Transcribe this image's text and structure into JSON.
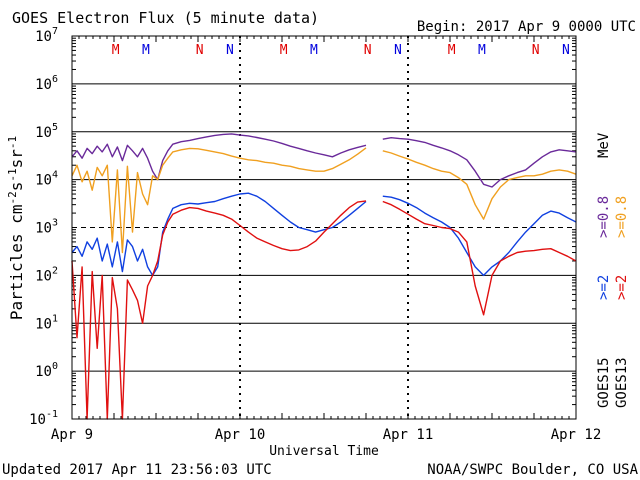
{
  "header": {
    "title": "GOES Electron Flux (5 minute data)",
    "begin": "Begin: 2017 Apr 9 0000 UTC"
  },
  "footer": {
    "updated": "Updated 2017 Apr 11 23:56:03 UTC",
    "credit": "NOAA/SWPC Boulder, CO USA"
  },
  "chart_data": {
    "type": "line",
    "title": "GOES Electron Flux (5 minute data)",
    "xlabel": "Universal Time",
    "ylabel": "Particles cm-2s-1sr-1",
    "yscale": "log",
    "ylim": [
      0.1,
      10000000
    ],
    "y_ticks": [
      {
        "base": "10",
        "exp": "-1",
        "value": 0.1
      },
      {
        "base": "10",
        "exp": "0",
        "value": 1
      },
      {
        "base": "10",
        "exp": "1",
        "value": 10
      },
      {
        "base": "10",
        "exp": "2",
        "value": 100
      },
      {
        "base": "10",
        "exp": "3",
        "value": 1000
      },
      {
        "base": "10",
        "exp": "4",
        "value": 10000
      },
      {
        "base": "10",
        "exp": "5",
        "value": 100000
      },
      {
        "base": "10",
        "exp": "6",
        "value": 1000000
      },
      {
        "base": "10",
        "exp": "7",
        "value": 10000000
      }
    ],
    "xlim_days": [
      0,
      3
    ],
    "x_ticks": [
      {
        "label": "Apr 9",
        "day": 0
      },
      {
        "label": "Apr 10",
        "day": 1
      },
      {
        "label": "Apr 11",
        "day": 2
      },
      {
        "label": "Apr 12",
        "day": 3
      }
    ],
    "threshold": 1000,
    "grid": true,
    "markers": [
      {
        "label": "M",
        "day": 0.26,
        "color": "#e00000"
      },
      {
        "label": "M",
        "day": 0.44,
        "color": "#0000dd"
      },
      {
        "label": "N",
        "day": 0.76,
        "color": "#e00000"
      },
      {
        "label": "N",
        "day": 0.94,
        "color": "#0000dd"
      },
      {
        "label": "M",
        "day": 1.26,
        "color": "#e00000"
      },
      {
        "label": "M",
        "day": 1.44,
        "color": "#0000dd"
      },
      {
        "label": "N",
        "day": 1.76,
        "color": "#e00000"
      },
      {
        "label": "N",
        "day": 1.94,
        "color": "#0000dd"
      },
      {
        "label": "M",
        "day": 2.26,
        "color": "#e00000"
      },
      {
        "label": "M",
        "day": 2.44,
        "color": "#0000dd"
      },
      {
        "label": "N",
        "day": 2.76,
        "color": "#e00000"
      },
      {
        "label": "N",
        "day": 2.94,
        "color": "#0000dd"
      }
    ],
    "legend": {
      "groups": [
        {
          "satellite": "GOES15",
          "items": [
            {
              "label": ">=2",
              "color": "#1040e0"
            },
            {
              "label": ">=0.8",
              "color": "#6a2a9a"
            }
          ]
        },
        {
          "satellite": "GOES13",
          "items": [
            {
              "label": ">=2",
              "color": "#e01010"
            },
            {
              "label": ">=0.8",
              "color": "#f0a020"
            }
          ]
        }
      ],
      "unit": "MeV"
    },
    "series": [
      {
        "color": "#6a2a9a",
        "x": [
          0.0,
          0.03,
          0.06,
          0.09,
          0.12,
          0.15,
          0.18,
          0.21,
          0.24,
          0.27,
          0.3,
          0.33,
          0.36,
          0.39,
          0.42,
          0.45,
          0.48,
          0.51,
          0.54,
          0.57,
          0.6,
          0.65,
          0.7,
          0.75,
          0.8,
          0.85,
          0.9,
          0.95,
          1.0,
          1.05,
          1.1,
          1.15,
          1.2,
          1.25,
          1.3,
          1.35,
          1.4,
          1.45,
          1.5,
          1.55,
          1.6,
          1.65,
          1.7,
          1.75,
          1.8,
          1.85,
          1.9,
          1.95,
          2.0,
          2.05,
          2.1,
          2.15,
          2.2,
          2.25,
          2.3,
          2.35,
          2.4,
          2.45,
          2.5,
          2.55,
          2.6,
          2.65,
          2.7,
          2.75,
          2.8,
          2.85,
          2.9,
          2.95,
          3.0
        ],
        "y": [
          30000,
          40000,
          28000,
          45000,
          35000,
          50000,
          38000,
          55000,
          30000,
          48000,
          25000,
          52000,
          40000,
          30000,
          45000,
          28000,
          15000,
          10000,
          25000,
          40000,
          55000,
          62000,
          66000,
          72000,
          78000,
          84000,
          88000,
          90000,
          85000,
          82000,
          76000,
          70000,
          64000,
          57000,
          50000,
          45000,
          40000,
          36000,
          33000,
          30000,
          36000,
          42000,
          47000,
          52000,
          null,
          70000,
          75000,
          72000,
          70000,
          65000,
          60000,
          52000,
          46000,
          40000,
          33000,
          26000,
          15000,
          8000,
          7000,
          10000,
          12000,
          14000,
          16000,
          22000,
          30000,
          38000,
          42000,
          40000,
          38000
        ]
      },
      {
        "color": "#f0a020",
        "x": [
          0.0,
          0.03,
          0.06,
          0.09,
          0.12,
          0.15,
          0.18,
          0.21,
          0.24,
          0.27,
          0.3,
          0.33,
          0.36,
          0.39,
          0.42,
          0.45,
          0.48,
          0.51,
          0.54,
          0.57,
          0.6,
          0.65,
          0.7,
          0.75,
          0.8,
          0.85,
          0.9,
          0.95,
          1.0,
          1.05,
          1.1,
          1.15,
          1.2,
          1.25,
          1.3,
          1.35,
          1.4,
          1.45,
          1.5,
          1.55,
          1.6,
          1.65,
          1.7,
          1.75,
          1.8,
          1.85,
          1.9,
          1.95,
          2.0,
          2.05,
          2.1,
          2.15,
          2.2,
          2.25,
          2.3,
          2.35,
          2.4,
          2.45,
          2.5,
          2.55,
          2.6,
          2.65,
          2.7,
          2.75,
          2.8,
          2.85,
          2.9,
          2.95,
          3.0
        ],
        "y": [
          12000,
          20000,
          9000,
          15000,
          6000,
          18000,
          12000,
          20000,
          500,
          16000,
          300,
          19000,
          800,
          14000,
          5000,
          3000,
          12000,
          10000,
          20000,
          28000,
          38000,
          42000,
          45000,
          44000,
          41000,
          38000,
          35000,
          31000,
          28000,
          26000,
          25000,
          23000,
          22000,
          20000,
          19000,
          17000,
          16000,
          15000,
          15000,
          17000,
          21000,
          26000,
          34000,
          46000,
          null,
          40000,
          36000,
          31000,
          27000,
          23000,
          20000,
          17000,
          15000,
          14000,
          11000,
          8000,
          3000,
          1500,
          4000,
          7000,
          10000,
          11000,
          12000,
          12000,
          13000,
          15000,
          16000,
          15000,
          13000
        ]
      },
      {
        "color": "#1040e0",
        "x": [
          0.0,
          0.03,
          0.06,
          0.09,
          0.12,
          0.15,
          0.18,
          0.21,
          0.24,
          0.27,
          0.3,
          0.33,
          0.36,
          0.39,
          0.42,
          0.45,
          0.48,
          0.51,
          0.54,
          0.57,
          0.6,
          0.65,
          0.7,
          0.75,
          0.8,
          0.85,
          0.9,
          0.95,
          1.0,
          1.05,
          1.1,
          1.15,
          1.2,
          1.25,
          1.3,
          1.35,
          1.4,
          1.45,
          1.5,
          1.55,
          1.6,
          1.65,
          1.7,
          1.75,
          1.8,
          1.85,
          1.9,
          1.95,
          2.0,
          2.05,
          2.1,
          2.15,
          2.2,
          2.25,
          2.3,
          2.35,
          2.4,
          2.45,
          2.5,
          2.55,
          2.6,
          2.65,
          2.7,
          2.75,
          2.8,
          2.85,
          2.9,
          2.95,
          3.0
        ],
        "y": [
          300,
          400,
          250,
          500,
          350,
          600,
          200,
          450,
          150,
          500,
          120,
          550,
          400,
          200,
          350,
          150,
          100,
          150,
          800,
          1500,
          2500,
          3000,
          3200,
          3100,
          3300,
          3500,
          4000,
          4500,
          5000,
          5200,
          4500,
          3500,
          2500,
          1800,
          1300,
          1000,
          900,
          800,
          900,
          1000,
          1300,
          1800,
          2500,
          3500,
          null,
          4500,
          4300,
          3800,
          3200,
          2600,
          2000,
          1600,
          1300,
          1000,
          600,
          300,
          150,
          100,
          150,
          200,
          300,
          500,
          800,
          1200,
          1800,
          2200,
          2000,
          1600,
          1300
        ]
      },
      {
        "color": "#e01010",
        "x": [
          0.0,
          0.03,
          0.06,
          0.09,
          0.12,
          0.15,
          0.18,
          0.21,
          0.24,
          0.27,
          0.3,
          0.33,
          0.36,
          0.39,
          0.42,
          0.45,
          0.48,
          0.51,
          0.54,
          0.57,
          0.6,
          0.65,
          0.7,
          0.75,
          0.8,
          0.85,
          0.9,
          0.95,
          1.0,
          1.05,
          1.1,
          1.15,
          1.2,
          1.25,
          1.3,
          1.35,
          1.4,
          1.45,
          1.5,
          1.55,
          1.6,
          1.65,
          1.7,
          1.75,
          1.8,
          1.85,
          1.9,
          1.95,
          2.0,
          2.05,
          2.1,
          2.15,
          2.2,
          2.25,
          2.3,
          2.35,
          2.4,
          2.45,
          2.5,
          2.55,
          2.6,
          2.65,
          2.7,
          2.75,
          2.8,
          2.85,
          2.9,
          2.95,
          3.0
        ],
        "y": [
          200,
          5,
          150,
          0.1,
          120,
          3,
          100,
          0.1,
          90,
          20,
          0.1,
          80,
          50,
          30,
          10,
          60,
          100,
          200,
          700,
          1300,
          1900,
          2300,
          2600,
          2500,
          2200,
          2000,
          1800,
          1500,
          1100,
          800,
          600,
          500,
          420,
          360,
          330,
          340,
          400,
          520,
          800,
          1200,
          1800,
          2600,
          3400,
          3600,
          null,
          3500,
          3000,
          2400,
          1900,
          1500,
          1200,
          1100,
          1000,
          950,
          800,
          500,
          60,
          15,
          100,
          200,
          250,
          300,
          320,
          330,
          350,
          360,
          300,
          250,
          200
        ]
      }
    ]
  }
}
